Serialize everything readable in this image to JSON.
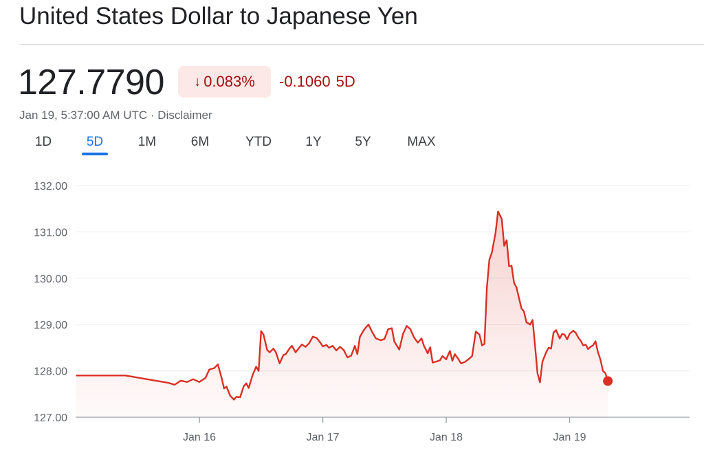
{
  "header": {
    "title": "United States Dollar to Japanese Yen"
  },
  "quote": {
    "price": "127.7790",
    "change_pct": "0.083%",
    "change_abs": "-0.1060",
    "change_period": "5D",
    "timestamp": "Jan 19, 5:37:00 AM UTC",
    "separator": "·",
    "disclaimer": "Disclaimer",
    "down_color": "#a50e0e",
    "down_badge_bg": "#fce8e6"
  },
  "tabs": [
    {
      "label": "1D",
      "active": false
    },
    {
      "label": "5D",
      "active": true
    },
    {
      "label": "1M",
      "active": false
    },
    {
      "label": "6M",
      "active": false
    },
    {
      "label": "YTD",
      "active": false
    },
    {
      "label": "1Y",
      "active": false
    },
    {
      "label": "5Y",
      "active": false
    },
    {
      "label": "MAX",
      "active": false
    }
  ],
  "chart_data": {
    "type": "area",
    "title": "",
    "xlabel": "",
    "ylabel": "",
    "ylim": [
      127,
      132
    ],
    "y_ticks": [
      "132.00",
      "131.00",
      "130.00",
      "129.00",
      "128.00",
      "127.00"
    ],
    "x_ticks": [
      "Jan 16",
      "Jan 17",
      "Jan 18",
      "Jan 19"
    ],
    "grid": true,
    "line_color": "#d93025",
    "x_unit": "days since start of window (Jan 15 ≈ -1)",
    "series": [
      {
        "name": "USD/JPY",
        "points": [
          [
            -1.0,
            127.9
          ],
          [
            -0.6,
            127.9
          ],
          [
            -0.25,
            127.74
          ],
          [
            -0.2,
            127.7
          ],
          [
            -0.15,
            127.79
          ],
          [
            -0.1,
            127.76
          ],
          [
            -0.05,
            127.82
          ],
          [
            0.0,
            127.76
          ],
          [
            0.05,
            127.85
          ],
          [
            0.08,
            128.03
          ],
          [
            0.12,
            128.06
          ],
          [
            0.15,
            128.14
          ],
          [
            0.18,
            127.85
          ],
          [
            0.2,
            127.62
          ],
          [
            0.22,
            127.66
          ],
          [
            0.25,
            127.46
          ],
          [
            0.28,
            127.38
          ],
          [
            0.3,
            127.44
          ],
          [
            0.33,
            127.43
          ],
          [
            0.36,
            127.67
          ],
          [
            0.38,
            127.73
          ],
          [
            0.4,
            127.63
          ],
          [
            0.43,
            127.9
          ],
          [
            0.46,
            128.09
          ],
          [
            0.48,
            128.0
          ],
          [
            0.5,
            128.86
          ],
          [
            0.52,
            128.78
          ],
          [
            0.55,
            128.45
          ],
          [
            0.57,
            128.4
          ],
          [
            0.6,
            128.48
          ],
          [
            0.62,
            128.4
          ],
          [
            0.65,
            128.16
          ],
          [
            0.68,
            128.34
          ],
          [
            0.7,
            128.36
          ],
          [
            0.73,
            128.48
          ],
          [
            0.75,
            128.54
          ],
          [
            0.78,
            128.4
          ],
          [
            0.8,
            128.47
          ],
          [
            0.83,
            128.57
          ],
          [
            0.86,
            128.52
          ],
          [
            0.89,
            128.6
          ],
          [
            0.92,
            128.74
          ],
          [
            0.95,
            128.71
          ],
          [
            0.98,
            128.61
          ],
          [
            1.0,
            128.53
          ],
          [
            1.03,
            128.56
          ],
          [
            1.05,
            128.5
          ],
          [
            1.08,
            128.54
          ],
          [
            1.11,
            128.44
          ],
          [
            1.14,
            128.52
          ],
          [
            1.17,
            128.45
          ],
          [
            1.2,
            128.29
          ],
          [
            1.23,
            128.33
          ],
          [
            1.26,
            128.54
          ],
          [
            1.28,
            128.36
          ],
          [
            1.3,
            128.73
          ],
          [
            1.33,
            128.87
          ],
          [
            1.35,
            128.94
          ],
          [
            1.37,
            129.0
          ],
          [
            1.4,
            128.84
          ],
          [
            1.43,
            128.7
          ],
          [
            1.47,
            128.66
          ],
          [
            1.5,
            128.69
          ],
          [
            1.53,
            128.9
          ],
          [
            1.56,
            128.92
          ],
          [
            1.58,
            128.63
          ],
          [
            1.62,
            128.46
          ],
          [
            1.65,
            128.8
          ],
          [
            1.68,
            128.97
          ],
          [
            1.71,
            128.9
          ],
          [
            1.74,
            128.72
          ],
          [
            1.77,
            128.61
          ],
          [
            1.8,
            128.7
          ],
          [
            1.82,
            128.54
          ],
          [
            1.85,
            128.38
          ],
          [
            1.87,
            128.51
          ],
          [
            1.89,
            128.18
          ],
          [
            1.92,
            128.2
          ],
          [
            1.95,
            128.23
          ],
          [
            1.97,
            128.32
          ],
          [
            2.0,
            128.25
          ],
          [
            2.03,
            128.43
          ],
          [
            2.05,
            128.22
          ],
          [
            2.07,
            128.36
          ],
          [
            2.1,
            128.25
          ],
          [
            2.12,
            128.16
          ],
          [
            2.15,
            128.19
          ],
          [
            2.18,
            128.25
          ],
          [
            2.21,
            128.32
          ],
          [
            2.24,
            128.85
          ],
          [
            2.27,
            128.78
          ],
          [
            2.29,
            128.55
          ],
          [
            2.31,
            128.58
          ],
          [
            2.33,
            129.8
          ],
          [
            2.35,
            130.4
          ],
          [
            2.37,
            130.55
          ],
          [
            2.4,
            130.98
          ],
          [
            2.42,
            131.44
          ],
          [
            2.45,
            131.28
          ],
          [
            2.47,
            130.7
          ],
          [
            2.49,
            130.82
          ],
          [
            2.51,
            130.26
          ],
          [
            2.53,
            130.27
          ],
          [
            2.55,
            129.9
          ],
          [
            2.57,
            129.8
          ],
          [
            2.59,
            129.57
          ],
          [
            2.61,
            129.35
          ],
          [
            2.63,
            129.28
          ],
          [
            2.65,
            129.05
          ],
          [
            2.68,
            129.0
          ],
          [
            2.7,
            129.1
          ],
          [
            2.72,
            128.55
          ],
          [
            2.74,
            127.95
          ],
          [
            2.76,
            127.75
          ],
          [
            2.78,
            128.2
          ],
          [
            2.81,
            128.4
          ],
          [
            2.83,
            128.5
          ],
          [
            2.85,
            128.48
          ],
          [
            2.87,
            128.83
          ],
          [
            2.89,
            128.88
          ],
          [
            2.92,
            128.7
          ],
          [
            2.94,
            128.8
          ],
          [
            2.96,
            128.78
          ],
          [
            2.98,
            128.68
          ],
          [
            3.0,
            128.8
          ],
          [
            3.03,
            128.87
          ],
          [
            3.05,
            128.82
          ],
          [
            3.07,
            128.72
          ],
          [
            3.09,
            128.65
          ],
          [
            3.11,
            128.55
          ],
          [
            3.13,
            128.57
          ],
          [
            3.15,
            128.47
          ],
          [
            3.17,
            128.52
          ],
          [
            3.19,
            128.55
          ],
          [
            3.21,
            128.64
          ],
          [
            3.23,
            128.4
          ],
          [
            3.25,
            128.24
          ],
          [
            3.27,
            128.0
          ],
          [
            3.29,
            127.95
          ],
          [
            3.31,
            127.78
          ]
        ]
      }
    ]
  }
}
